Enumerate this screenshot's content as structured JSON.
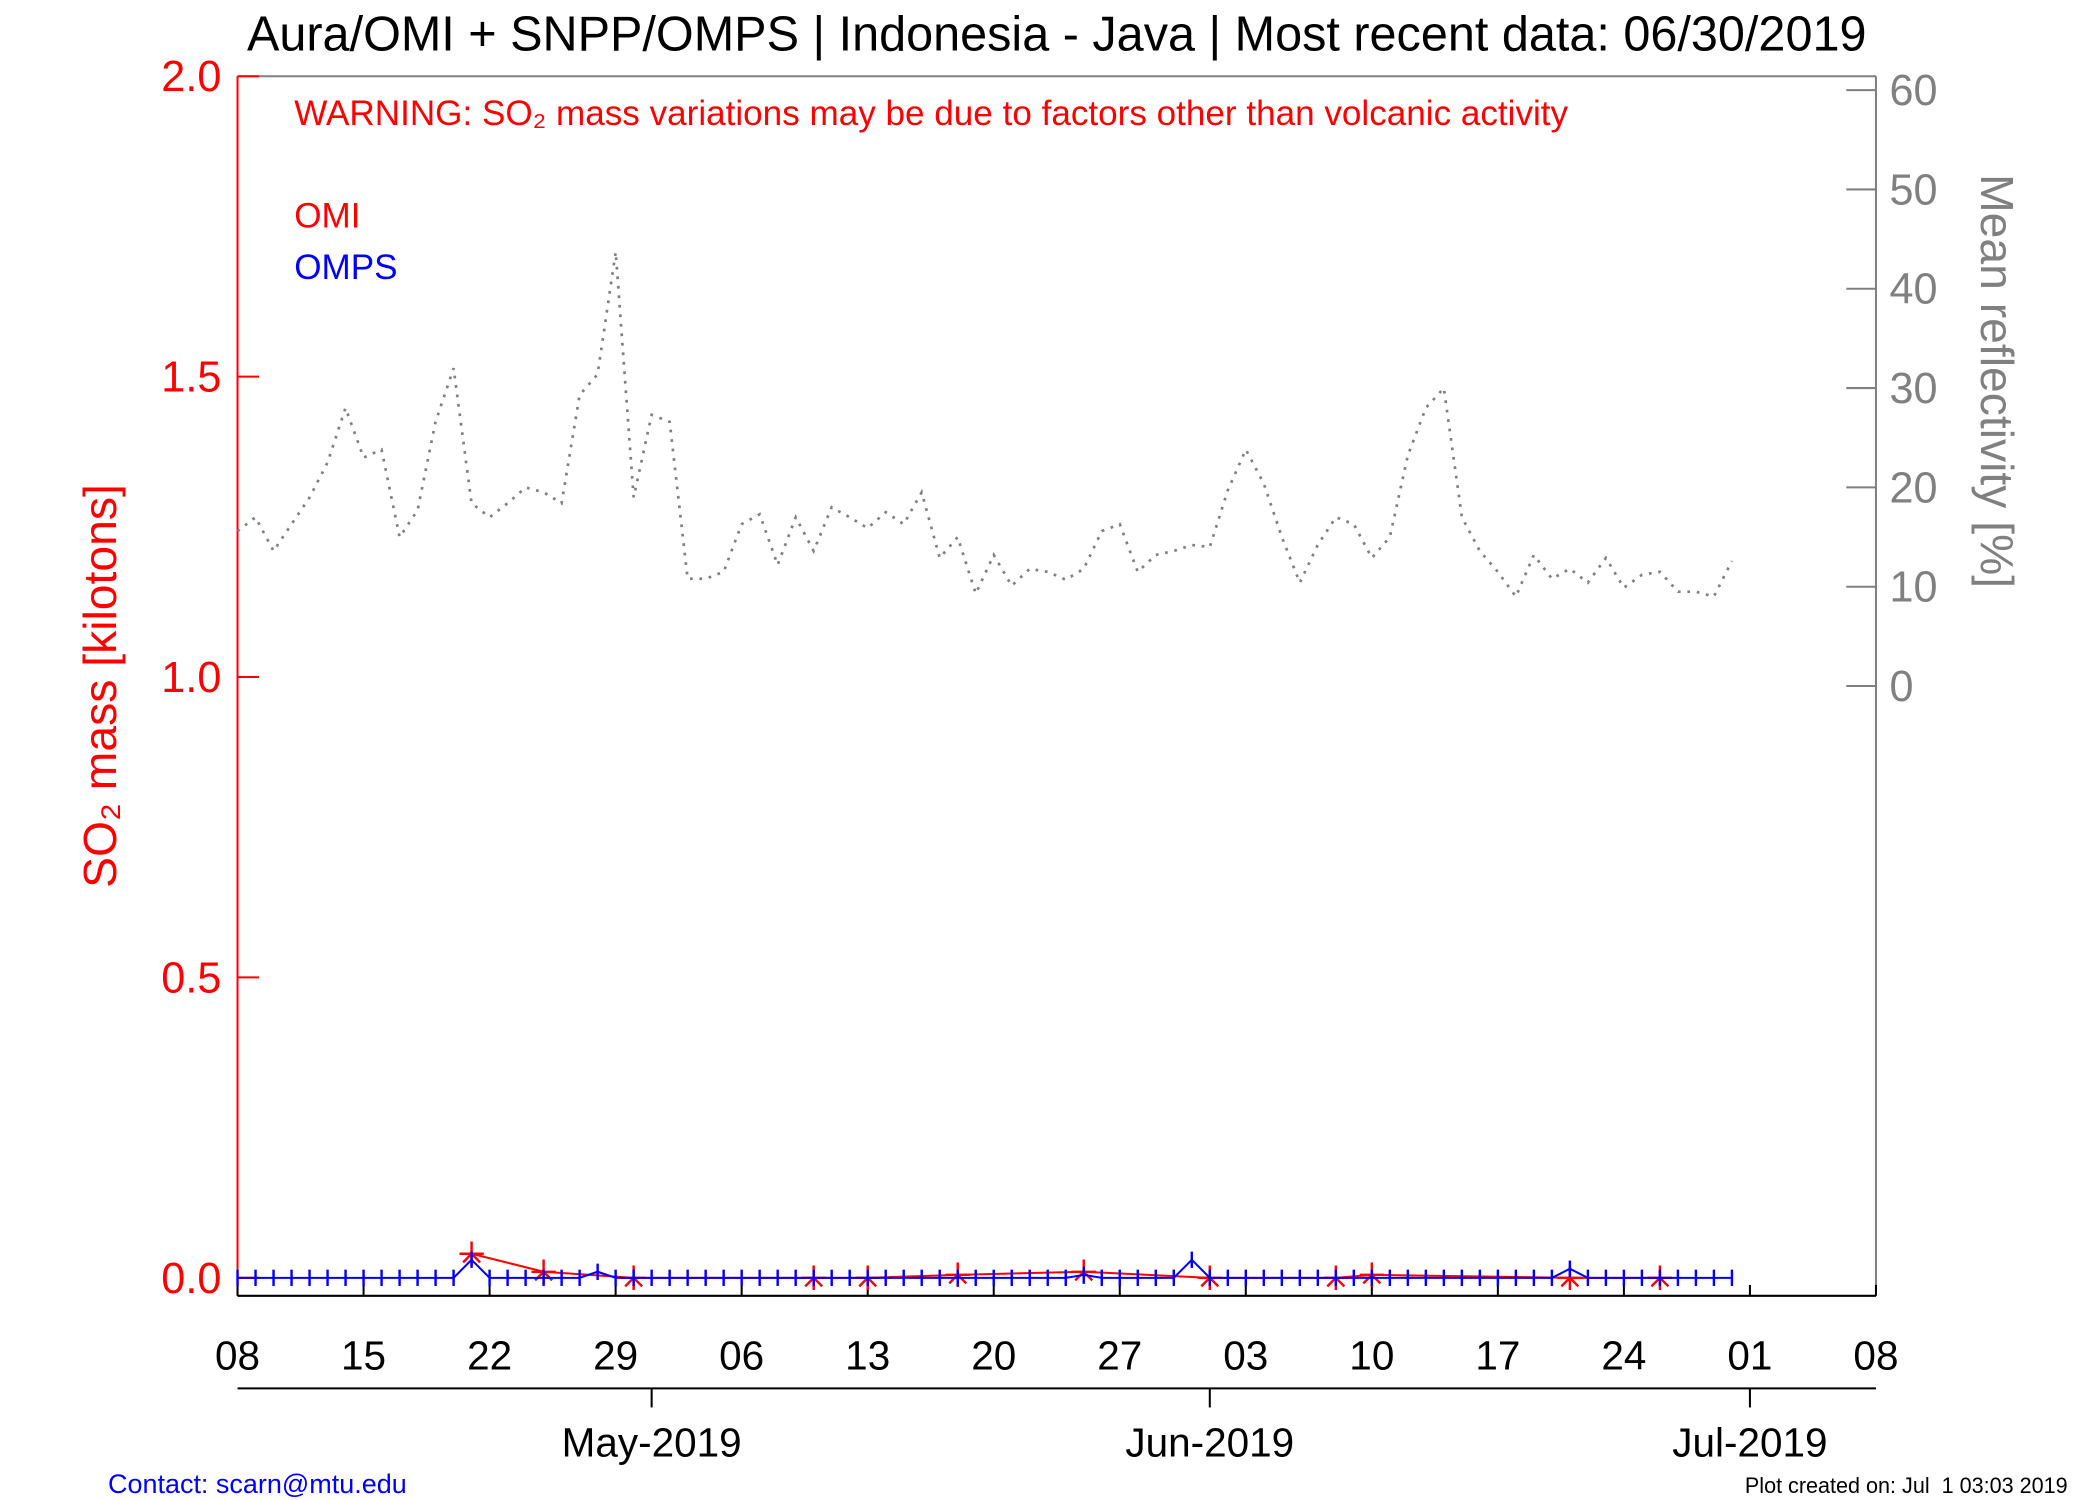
{
  "chart_data": {
    "type": "line",
    "title": "Aura/OMI + SNPP/OMPS | Indonesia - Java | Most recent data: 06/30/2019",
    "annotation": "WARNING: SO₂ mass variations may be due to factors other than volcanic activity",
    "y_label": "SO₂ mass [kilotons]",
    "y2_label": "Mean reflectivity [%]",
    "footer_left": "Contact: scarn@mtu.edu",
    "footer_right": "Plot created on: Jul  1 03:03 2019",
    "xlim": [
      "2019-04-08",
      "2019-07-08"
    ],
    "xticks": [
      {
        "value": "2019-04-08",
        "label": "08"
      },
      {
        "value": "2019-04-15",
        "label": "15"
      },
      {
        "value": "2019-04-22",
        "label": "22"
      },
      {
        "value": "2019-04-29",
        "label": "29"
      },
      {
        "value": "2019-05-06",
        "label": "06"
      },
      {
        "value": "2019-05-13",
        "label": "13"
      },
      {
        "value": "2019-05-20",
        "label": "20"
      },
      {
        "value": "2019-05-27",
        "label": "27"
      },
      {
        "value": "2019-06-03",
        "label": "03"
      },
      {
        "value": "2019-06-10",
        "label": "10"
      },
      {
        "value": "2019-06-17",
        "label": "17"
      },
      {
        "value": "2019-06-24",
        "label": "24"
      },
      {
        "value": "2019-07-01",
        "label": "01"
      },
      {
        "value": "2019-07-08",
        "label": "08"
      }
    ],
    "month_ticks": [
      {
        "value": "2019-05-01",
        "label": "May-2019"
      },
      {
        "value": "2019-06-01",
        "label": "Jun-2019"
      },
      {
        "value": "2019-07-01",
        "label": "Jul-2019"
      }
    ],
    "ylim": [
      -0.03,
      2.0
    ],
    "yticks": [
      {
        "value": 0,
        "label": "0.0"
      },
      0.5,
      {
        "value": 1,
        "label": "1.0"
      },
      1.5,
      {
        "value": 2,
        "label": "2.0"
      }
    ],
    "y2lim": [
      -61.4,
      61.4
    ],
    "y2ticks": [
      0,
      10,
      20,
      30,
      40,
      50,
      60
    ],
    "x": [
      "2019-04-08",
      "2019-04-09",
      "2019-04-10",
      "2019-04-11",
      "2019-04-12",
      "2019-04-13",
      "2019-04-14",
      "2019-04-15",
      "2019-04-16",
      "2019-04-17",
      "2019-04-18",
      "2019-04-19",
      "2019-04-20",
      "2019-04-21",
      "2019-04-22",
      "2019-04-23",
      "2019-04-24",
      "2019-04-25",
      "2019-04-26",
      "2019-04-27",
      "2019-04-28",
      "2019-04-29",
      "2019-04-30",
      "2019-05-01",
      "2019-05-02",
      "2019-05-03",
      "2019-05-04",
      "2019-05-05",
      "2019-05-06",
      "2019-05-07",
      "2019-05-08",
      "2019-05-09",
      "2019-05-10",
      "2019-05-11",
      "2019-05-12",
      "2019-05-13",
      "2019-05-14",
      "2019-05-15",
      "2019-05-16",
      "2019-05-17",
      "2019-05-18",
      "2019-05-19",
      "2019-05-20",
      "2019-05-21",
      "2019-05-22",
      "2019-05-23",
      "2019-05-24",
      "2019-05-25",
      "2019-05-26",
      "2019-05-27",
      "2019-05-28",
      "2019-05-29",
      "2019-05-30",
      "2019-05-31",
      "2019-06-01",
      "2019-06-02",
      "2019-06-03",
      "2019-06-04",
      "2019-06-05",
      "2019-06-06",
      "2019-06-07",
      "2019-06-08",
      "2019-06-09",
      "2019-06-10",
      "2019-06-11",
      "2019-06-12",
      "2019-06-13",
      "2019-06-14",
      "2019-06-15",
      "2019-06-16",
      "2019-06-17",
      "2019-06-18",
      "2019-06-19",
      "2019-06-20",
      "2019-06-21",
      "2019-06-22",
      "2019-06-23",
      "2019-06-24",
      "2019-06-25",
      "2019-06-26",
      "2019-06-27",
      "2019-06-28",
      "2019-06-29",
      "2019-06-30"
    ],
    "series": [
      {
        "name": "OMI",
        "color": "#ff0000",
        "marker": "asterisk",
        "x": [
          "2019-04-21",
          "2019-04-25",
          "2019-04-30",
          "2019-05-10",
          "2019-05-13",
          "2019-05-18",
          "2019-05-25",
          "2019-06-01",
          "2019-06-08",
          "2019-06-10",
          "2019-06-21",
          "2019-06-26"
        ],
        "values": [
          0.04,
          0.01,
          0.0,
          0.0,
          0.0,
          0.005,
          0.01,
          0.0,
          0.0,
          0.005,
          0.0,
          0.0
        ]
      },
      {
        "name": "OMPS",
        "color": "#0000ff",
        "marker": "tick",
        "values": [
          0,
          0,
          0,
          0,
          0,
          0,
          0,
          0,
          0,
          0,
          0,
          0,
          0,
          0.03,
          0,
          0,
          0,
          0,
          0,
          0,
          0.01,
          0,
          0,
          0,
          0,
          0,
          0,
          0,
          0,
          0,
          0,
          0,
          0,
          0,
          0,
          0,
          0,
          0,
          0,
          0,
          0,
          0,
          0,
          0,
          0,
          0,
          0,
          0.005,
          0,
          0,
          0,
          0,
          0,
          0.03,
          0,
          0,
          0,
          0,
          0,
          0,
          0,
          0,
          0,
          0,
          0,
          0,
          0,
          0,
          0,
          0,
          0,
          0,
          0,
          0,
          0.015,
          0,
          0,
          0,
          0,
          0,
          0,
          0,
          0,
          0
        ]
      },
      {
        "color": "#808080",
        "axis": "y2",
        "dash": "dotted",
        "values": [
          15.6,
          17,
          13.6,
          16.3,
          19,
          22.5,
          28,
          23,
          23.8,
          15,
          17.7,
          26.6,
          32,
          18.4,
          17,
          18.4,
          20,
          19.5,
          18.4,
          29.3,
          31.4,
          43.7,
          19,
          27.3,
          26.6,
          10.8,
          10.8,
          11.5,
          16.3,
          17.3,
          12.2,
          17,
          13.6,
          18,
          17,
          15.9,
          17.5,
          16.3,
          19.5,
          12.9,
          15,
          9.3,
          13.2,
          10.1,
          11.8,
          11.5,
          10.7,
          11.8,
          15.6,
          16.3,
          11.5,
          13.2,
          13.6,
          14.2,
          14,
          19.7,
          23.8,
          20.4,
          15,
          10.4,
          14.2,
          17,
          16.3,
          12.9,
          15,
          23.2,
          28,
          30,
          17,
          13.6,
          11.5,
          9,
          13.2,
          10.8,
          11.8,
          10.4,
          12.9,
          9.9,
          11.2,
          11.5,
          9.5,
          9.5,
          9,
          12.6
        ]
      }
    ]
  }
}
